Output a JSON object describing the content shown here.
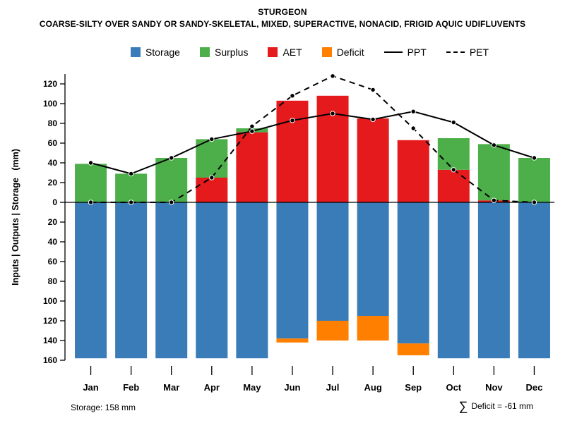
{
  "header": {
    "title": "STURGEON",
    "subtitle": "COARSE-SILTY OVER SANDY OR SANDY-SKELETAL, MIXED, SUPERACTIVE, NONACID, FRIGID AQUIC UDIFLUVENTS"
  },
  "footer": {
    "storage_label": "Storage: 158 mm",
    "deficit_sigma": "∑",
    "deficit_text": "Deficit = -61 mm"
  },
  "chart_data": {
    "type": "bar",
    "title": "STURGEON",
    "subtitle": "COARSE-SILTY OVER SANDY OR SANDY-SKELETAL, MIXED, SUPERACTIVE, NONACID, FRIGID AQUIC UDIFLUVENTS",
    "ylabel": "Inputs | Outputs | Storage   (mm)",
    "categories": [
      "Jan",
      "Feb",
      "Mar",
      "Apr",
      "May",
      "Jun",
      "Jul",
      "Aug",
      "Sep",
      "Oct",
      "Nov",
      "Dec"
    ],
    "series": [
      {
        "name": "AET",
        "type": "bar",
        "direction": "up",
        "stack": "inputs",
        "color": "#e41a1c",
        "values": [
          0,
          0,
          0,
          25,
          71,
          103,
          108,
          85,
          63,
          33,
          2,
          0
        ]
      },
      {
        "name": "Surplus",
        "type": "bar",
        "direction": "up",
        "stack": "inputs",
        "color": "#4daf4a",
        "values": [
          39,
          29,
          45,
          39,
          4,
          0,
          0,
          0,
          0,
          32,
          57,
          45
        ]
      },
      {
        "name": "Storage",
        "type": "bar",
        "direction": "down",
        "stack": "outputs",
        "color": "#3a7cb8",
        "values": [
          158,
          158,
          158,
          158,
          158,
          138,
          120,
          115,
          143,
          158,
          158,
          158
        ]
      },
      {
        "name": "Deficit",
        "type": "bar",
        "direction": "down",
        "stack": "outputs",
        "color": "#ff7f00",
        "values": [
          0,
          0,
          0,
          0,
          0,
          4,
          20,
          25,
          12,
          0,
          0,
          0
        ]
      },
      {
        "name": "PPT",
        "type": "line",
        "style": "solid",
        "color": "#000000",
        "values": [
          40,
          29,
          45,
          64,
          72,
          83,
          90,
          84,
          92,
          81,
          58,
          45
        ]
      },
      {
        "name": "PET",
        "type": "line",
        "style": "dashed",
        "color": "#000000",
        "values": [
          0,
          0,
          0,
          25,
          77,
          108,
          128,
          114,
          75,
          33,
          2,
          0
        ]
      }
    ],
    "yticks_up": [
      0,
      20,
      40,
      60,
      80,
      100,
      120
    ],
    "yticks_down": [
      20,
      40,
      60,
      80,
      100,
      120,
      140,
      160
    ],
    "y_up_max": 130,
    "y_down_max": 160,
    "grid": false,
    "legend_position": "top",
    "legend": [
      {
        "label": "Storage",
        "type": "swatch",
        "color": "#3a7cb8"
      },
      {
        "label": "Surplus",
        "type": "swatch",
        "color": "#4daf4a"
      },
      {
        "label": "AET",
        "type": "swatch",
        "color": "#e41a1c"
      },
      {
        "label": "Deficit",
        "type": "swatch",
        "color": "#ff7f00"
      },
      {
        "label": "PPT",
        "type": "line",
        "style": "solid",
        "color": "#000000"
      },
      {
        "label": "PET",
        "type": "line",
        "style": "dashed",
        "color": "#000000"
      }
    ],
    "annotations": {
      "storage_total": "Storage: 158 mm",
      "deficit_total": "∑ Deficit = -61 mm"
    }
  }
}
